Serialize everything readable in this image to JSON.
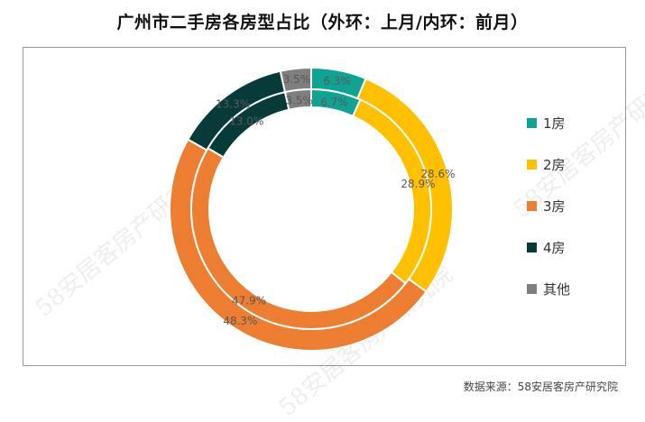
{
  "title": "广州市二手房各房型占比（外环：上月/内环：前月）",
  "source": "数据来源：58安居客房产研究院",
  "watermark": "58安居客房产研究院",
  "chart_data": {
    "type": "pie",
    "style": "double-donut",
    "title": "广州市二手房各房型占比（外环：上月/内环：前月）",
    "legend_position": "right",
    "categories": [
      "1房",
      "2房",
      "3房",
      "4房",
      "其他"
    ],
    "colors": [
      "#0fa394",
      "#ffc000",
      "#ed7d31",
      "#073b3a",
      "#7f7f7f"
    ],
    "series": [
      {
        "ring": "outer",
        "values": [
          6.3,
          28.6,
          48.3,
          13.3,
          3.5
        ],
        "labels": [
          "6.3%",
          "28.6%",
          "48.3%",
          "13.3%",
          "3.5%"
        ]
      },
      {
        "ring": "inner",
        "values": [
          6.7,
          28.9,
          47.9,
          13.0,
          3.5
        ],
        "labels": [
          "6.7%",
          "28.9%",
          "47.9%",
          "13.0%",
          "3.5%"
        ]
      }
    ]
  }
}
